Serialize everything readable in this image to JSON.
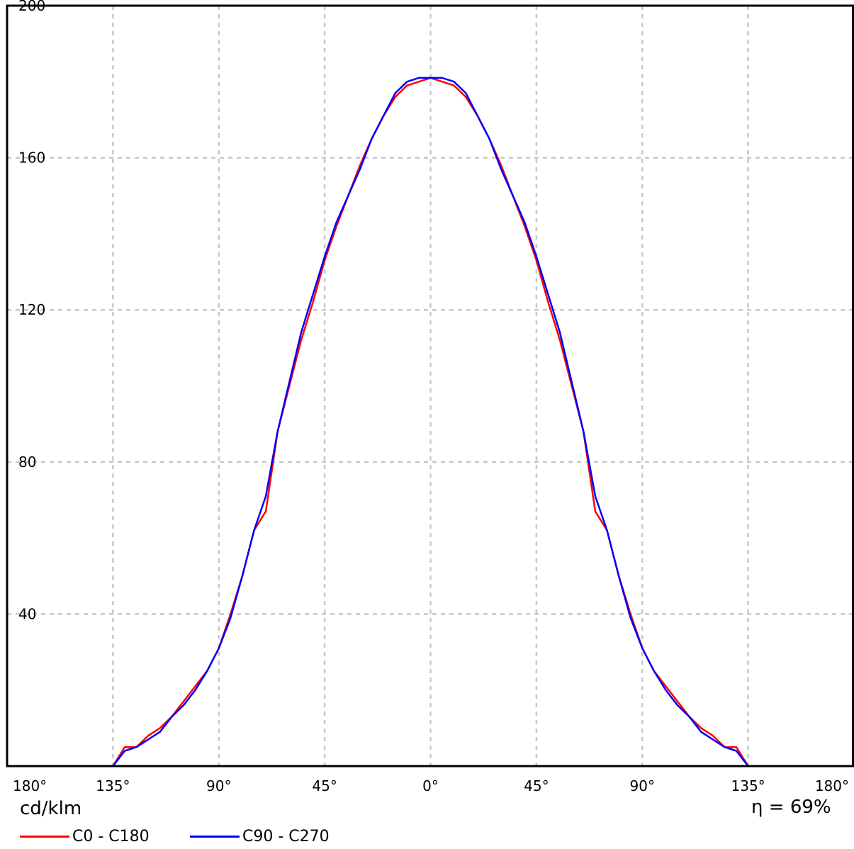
{
  "chart_data": {
    "type": "line",
    "x_unit_note": "signed polar angle in degrees",
    "x_tick_labels": [
      "180°",
      "135°",
      "90°",
      "45°",
      "0°",
      "45°",
      "90°",
      "135°",
      "180°"
    ],
    "x_ticks": [
      -180,
      -135,
      -90,
      -45,
      0,
      45,
      90,
      135,
      180
    ],
    "y_tick_labels": [
      "40",
      "80",
      "120",
      "160",
      "200"
    ],
    "y_ticks": [
      40,
      80,
      120,
      160,
      200
    ],
    "xlim": [
      -180,
      180
    ],
    "ylim": [
      0,
      200
    ],
    "ylabel": "cd/klm",
    "annotation": {
      "symbol": "η",
      "eq": "=",
      "value": "69%"
    },
    "grid": true,
    "legend_position": "bottom-left",
    "series": [
      {
        "name": "C0 - C180",
        "color": "#ff0000",
        "x": [
          -135,
          -130,
          -125,
          -120,
          -115,
          -110,
          -105,
          -100,
          -95,
          -90,
          -85,
          -80,
          -75,
          -70,
          -65,
          -60,
          -55,
          -50,
          -45,
          -40,
          -35,
          -30,
          -25,
          -20,
          -15,
          -10,
          -5,
          0,
          5,
          10,
          15,
          20,
          25,
          30,
          35,
          40,
          45,
          50,
          55,
          60,
          65,
          70,
          75,
          80,
          85,
          90,
          95,
          100,
          105,
          110,
          115,
          120,
          125,
          130,
          135
        ],
        "y": [
          0,
          5,
          5,
          8,
          10,
          13,
          17,
          21,
          25,
          31,
          40,
          50,
          62,
          67,
          88,
          100,
          112,
          122,
          133,
          142,
          150,
          158,
          165,
          171,
          176,
          179,
          180,
          181,
          180,
          179,
          176,
          171,
          165,
          158,
          150,
          142,
          133,
          122,
          112,
          100,
          88,
          67,
          62,
          50,
          40,
          31,
          25,
          21,
          17,
          13,
          10,
          8,
          5,
          5,
          0
        ]
      },
      {
        "name": "C90 - C270",
        "color": "#0000ff",
        "x": [
          -135,
          -130,
          -125,
          -120,
          -115,
          -110,
          -105,
          -100,
          -95,
          -90,
          -85,
          -80,
          -75,
          -70,
          -65,
          -60,
          -55,
          -50,
          -45,
          -40,
          -35,
          -30,
          -25,
          -20,
          -15,
          -10,
          -5,
          0,
          5,
          10,
          15,
          20,
          25,
          30,
          35,
          40,
          45,
          50,
          55,
          60,
          65,
          70,
          75,
          80,
          85,
          90,
          95,
          100,
          105,
          110,
          115,
          120,
          125,
          130,
          135
        ],
        "y": [
          0,
          4,
          5,
          7,
          9,
          13,
          16,
          20,
          25,
          31,
          39,
          50,
          62,
          71,
          88,
          101,
          114,
          124,
          134,
          143,
          150,
          157,
          165,
          171,
          177,
          180,
          181,
          181,
          181,
          180,
          177,
          171,
          165,
          157,
          150,
          143,
          134,
          124,
          114,
          101,
          88,
          71,
          62,
          50,
          39,
          31,
          25,
          20,
          16,
          13,
          9,
          7,
          5,
          4,
          0
        ]
      }
    ]
  }
}
